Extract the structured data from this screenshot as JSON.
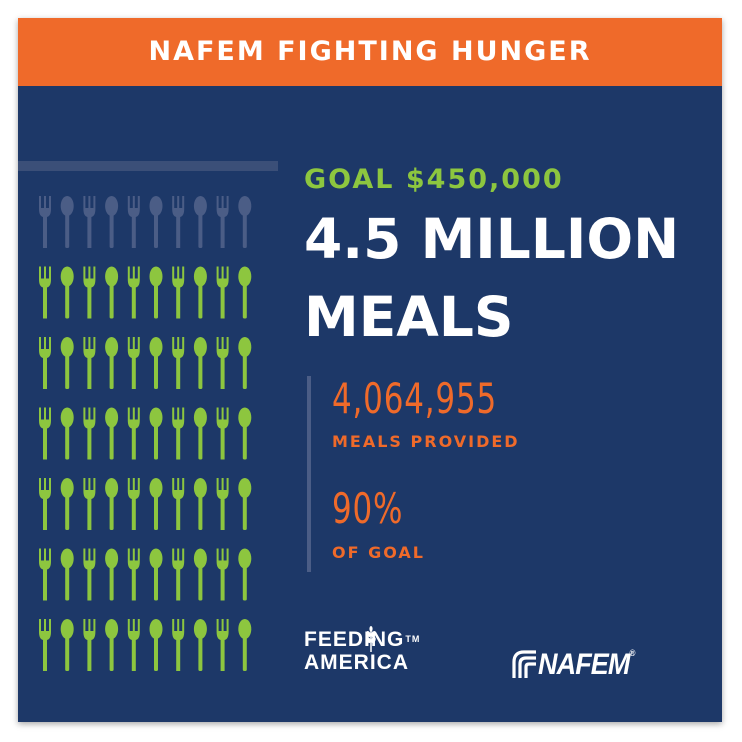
{
  "banner": {
    "title": "NAFEM FIGHTING HUNGER"
  },
  "goal": {
    "text": "GOAL $450,000"
  },
  "headline": {
    "line1": "4.5 MILLION",
    "line2": "MEALS"
  },
  "stats": {
    "meals_value": "4,064,955",
    "meals_label": "MEALS PROVIDED",
    "percent_value": "90%",
    "percent_label": "OF GOAL"
  },
  "progress": {
    "fraction_of_goal": 0.9
  },
  "icon_grid": {
    "rows": 7,
    "columns": 10,
    "unfilled_rows": 1,
    "icon_pattern": [
      "fork-icon",
      "spoon-icon"
    ]
  },
  "logos": {
    "feeding_america": {
      "line1": "FEEDING",
      "line2": "AMERICA",
      "mark": "TM"
    },
    "nafem": {
      "text": "NAFEM",
      "mark": "®"
    }
  },
  "colors": {
    "background": "#1d3868",
    "banner": "#ef6a2a",
    "accent_green": "#8dc63f",
    "accent_orange": "#ef6a2a",
    "muted_icon": "#4b5d86"
  }
}
